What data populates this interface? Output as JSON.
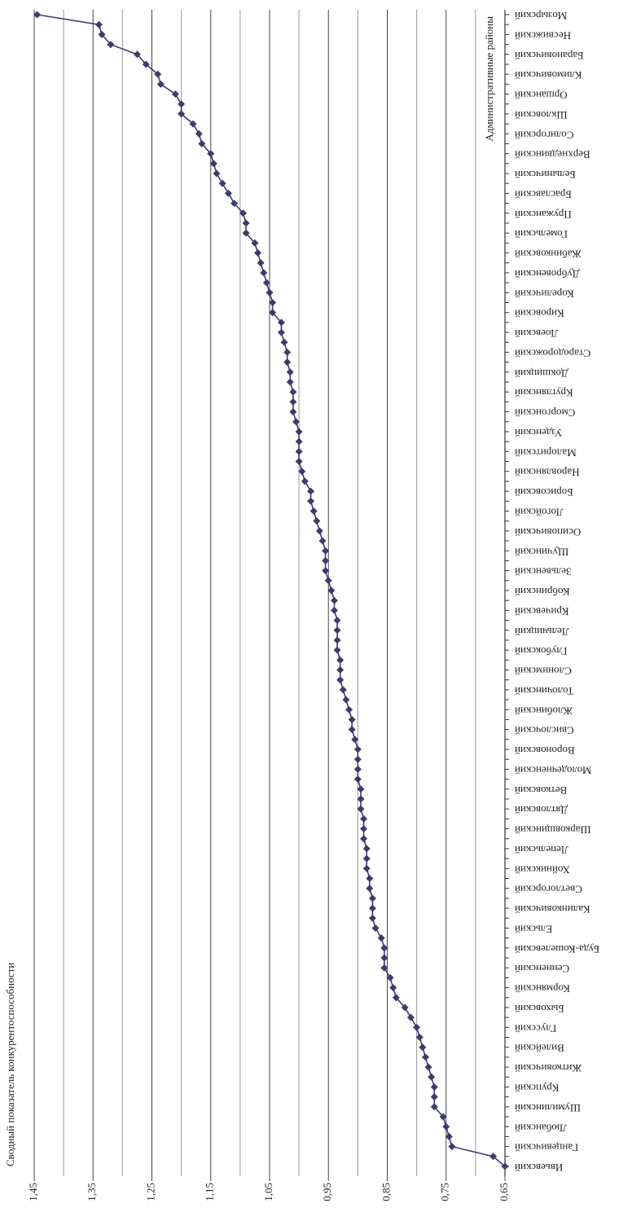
{
  "chart_data": {
    "type": "line",
    "y_axis_title": "Сводный показатель конкурентоспособности",
    "x_axis_title": "Административные районы",
    "categories": [
      "Ивьевский",
      null,
      "Ганцевичский",
      null,
      "Любанский",
      null,
      "Шумилинский",
      null,
      "Крупский",
      null,
      "Житковичский",
      null,
      "Вилейский",
      null,
      "Глусский",
      null,
      "Быховский",
      null,
      "Кормянский",
      null,
      "Сенненский",
      null,
      "Буда-Кошелевский",
      null,
      "Ельский",
      null,
      "Калинковичский",
      null,
      "Светлогорский",
      null,
      "Хойникский",
      null,
      "Лепельский",
      null,
      "Шарковщинский",
      null,
      "Дятловский",
      null,
      "Ветковский",
      null,
      "Молодечненский",
      null,
      "Вороновский",
      null,
      "Свислочский",
      null,
      "Жлобинский",
      null,
      "Толочинский",
      null,
      "Слонимский",
      null,
      "Глубокский",
      null,
      "Лельчицкий",
      null,
      "Кричевский",
      null,
      "Кобринский",
      null,
      "Зельвенский",
      null,
      "Щучинский",
      null,
      "Осиповичский",
      null,
      "Логойский",
      null,
      "Борисовский",
      null,
      "Наровлянский",
      null,
      "Малоритский",
      null,
      "Узденский",
      null,
      "Сморгонский",
      null,
      "Круглянский",
      null,
      "Докшицкий",
      null,
      "Стародорожский",
      null,
      "Лоевский",
      null,
      "Кировский",
      null,
      "Кореличский",
      null,
      "Дубровенский",
      null,
      "Жабинковский",
      null,
      "Гомельский",
      null,
      "Пружанский",
      null,
      "Браславский",
      null,
      "Белыничский",
      null,
      "Верхнедвинский",
      null,
      "Солигорский",
      null,
      "Шкловский",
      null,
      "Оршанский",
      null,
      "Климовичский",
      null,
      "Барановичский",
      null,
      "Несвижский",
      null,
      "Мозырский"
    ],
    "series": [
      {
        "color": "#3c3c6c",
        "values": [
          0.65,
          0.67,
          0.74,
          0.745,
          0.75,
          0.755,
          0.77,
          0.77,
          0.77,
          0.775,
          0.78,
          0.785,
          0.79,
          0.795,
          0.8,
          0.81,
          0.82,
          0.835,
          0.84,
          0.845,
          0.855,
          0.855,
          0.855,
          0.86,
          0.87,
          0.875,
          0.875,
          0.875,
          0.88,
          0.88,
          0.885,
          0.885,
          0.885,
          0.89,
          0.89,
          0.89,
          0.895,
          0.895,
          0.895,
          0.9,
          0.9,
          0.9,
          0.9,
          0.905,
          0.91,
          0.91,
          0.915,
          0.92,
          0.925,
          0.93,
          0.93,
          0.93,
          0.935,
          0.935,
          0.935,
          0.935,
          0.94,
          0.94,
          0.945,
          0.95,
          0.955,
          0.955,
          0.955,
          0.96,
          0.965,
          0.97,
          0.975,
          0.98,
          0.98,
          0.99,
          0.995,
          1.0,
          1.0,
          1.0,
          1.0,
          1.005,
          1.01,
          1.01,
          1.01,
          1.015,
          1.015,
          1.02,
          1.02,
          1.025,
          1.03,
          1.03,
          1.045,
          1.045,
          1.05,
          1.055,
          1.06,
          1.065,
          1.07,
          1.075,
          1.09,
          1.09,
          1.095,
          1.11,
          1.12,
          1.13,
          1.14,
          1.145,
          1.15,
          1.165,
          1.17,
          1.18,
          1.2,
          1.2,
          1.21,
          1.235,
          1.24,
          1.26,
          1.275,
          1.32,
          1.335,
          1.34,
          1.445
        ]
      }
    ],
    "ylim": [
      0.65,
      1.45
    ],
    "yticks": [
      {
        "value": 1.45,
        "label": "1,45"
      },
      {
        "value": 1.35,
        "label": "1,35"
      },
      {
        "value": 1.25,
        "label": "1,25"
      },
      {
        "value": 1.15,
        "label": "1,15"
      },
      {
        "value": 1.05,
        "label": "1,05"
      },
      {
        "value": 0.95,
        "label": "0,95"
      },
      {
        "value": 0.85,
        "label": "0,85"
      },
      {
        "value": 0.75,
        "label": "0,75"
      },
      {
        "value": 0.65,
        "label": "0,65"
      }
    ],
    "minor_grid": [
      1.4,
      1.3,
      1.2,
      1.1,
      1.0,
      0.9,
      0.8,
      0.7
    ],
    "grid": true
  }
}
